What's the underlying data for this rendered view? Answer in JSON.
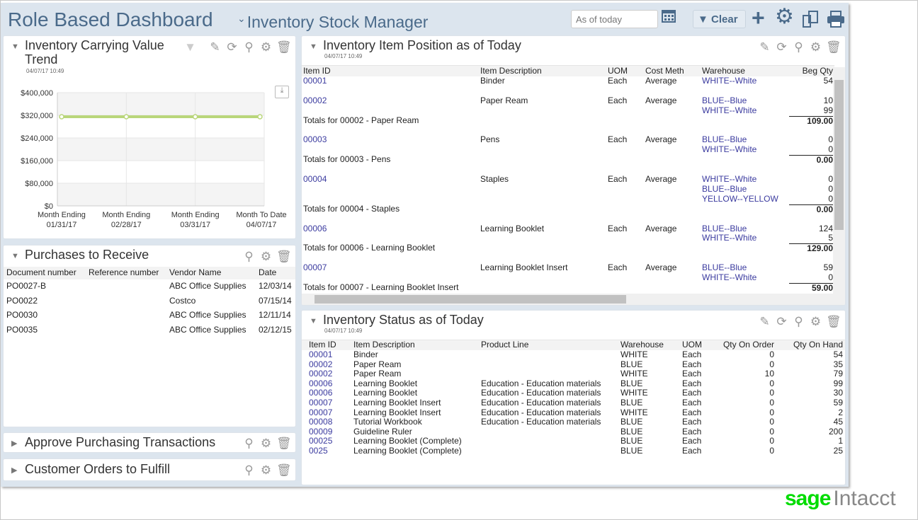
{
  "header": {
    "title": "Role Based Dashboard",
    "dashboard_name": "Inventory Stock Manager",
    "as_of_placeholder": "As of today",
    "clear_label": "Clear"
  },
  "icons": {
    "panel": [
      "pencil-icon",
      "refresh-icon",
      "search-icon",
      "gear-icon",
      "trash-icon"
    ],
    "toolbar": [
      "calendar-icon",
      "filter-icon",
      "plus-icon",
      "gear-icon",
      "copy-icon",
      "print-icon"
    ]
  },
  "colors": {
    "accent": "#4a6a8a",
    "link": "#3b3b9f",
    "series": "#b9d67a",
    "brand": "#00dc00"
  },
  "carrying": {
    "title": "Inventory Carrying Value Trend",
    "timestamp": "04/07/17 10:49"
  },
  "chart_data": {
    "type": "line",
    "title": "",
    "xlabel": "",
    "ylabel": "",
    "ylim": [
      0,
      400000
    ],
    "grid": true,
    "y_ticks": [
      "$0",
      "$80,000",
      "$160,000",
      "$240,000",
      "$320,000",
      "$400,000"
    ],
    "categories": [
      [
        "Month Ending",
        "01/31/17"
      ],
      [
        "Month Ending",
        "02/28/17"
      ],
      [
        "Month Ending",
        "03/31/17"
      ],
      [
        "Month To Date",
        "04/07/17"
      ]
    ],
    "values": [
      315000,
      315000,
      315000,
      315000
    ]
  },
  "purchases": {
    "title": "Purchases to Receive",
    "columns": [
      "Document number",
      "Reference number",
      "Vendor Name",
      "Date"
    ],
    "rows": [
      [
        "PO0027-B",
        "",
        "ABC Office Supplies",
        "12/03/14"
      ],
      [
        "PO0022",
        "",
        "Costco",
        "07/15/14"
      ],
      [
        "PO0030",
        "",
        "ABC Office Supplies",
        "12/11/14"
      ],
      [
        "PO0035",
        "",
        "ABC Office Supplies",
        "02/12/15"
      ]
    ]
  },
  "approve": {
    "title": "Approve Purchasing Transactions"
  },
  "customer": {
    "title": "Customer Orders to Fulfill"
  },
  "position": {
    "title": "Inventory Item Position as of Today",
    "timestamp": "04/07/17 10:49",
    "columns": [
      "Item ID",
      "Item Description",
      "UOM",
      "Cost Meth",
      "Warehouse",
      "Beg Qty"
    ],
    "groups": [
      {
        "id": "00001",
        "desc": "Binder",
        "uom": "Each",
        "cost": "Average",
        "wh": [
          [
            "WHITE--White",
            "54"
          ]
        ]
      },
      {
        "id": "00002",
        "desc": "Paper Ream",
        "uom": "Each",
        "cost": "Average",
        "wh": [
          [
            "BLUE--Blue",
            "10"
          ],
          [
            "WHITE--White",
            "99"
          ]
        ],
        "total_label": "Totals for 00002 - Paper Ream",
        "total": "109.00"
      },
      {
        "id": "00003",
        "desc": "Pens",
        "uom": "Each",
        "cost": "Average",
        "wh": [
          [
            "BLUE--Blue",
            "0"
          ],
          [
            "WHITE--White",
            "0"
          ]
        ],
        "total_label": "Totals for 00003 - Pens",
        "total": "0.00"
      },
      {
        "id": "00004",
        "desc": "Staples",
        "uom": "Each",
        "cost": "Average",
        "wh": [
          [
            "WHITE--White",
            "0"
          ],
          [
            "BLUE--Blue",
            "0"
          ],
          [
            "YELLOW--YELLOW",
            "0"
          ]
        ],
        "total_label": "Totals for 00004 - Staples",
        "total": "0.00"
      },
      {
        "id": "00006",
        "desc": "Learning Booklet",
        "uom": "Each",
        "cost": "Average",
        "wh": [
          [
            "BLUE--Blue",
            "124"
          ],
          [
            "WHITE--White",
            "5"
          ]
        ],
        "total_label": "Totals for 00006 - Learning Booklet",
        "total": "129.00"
      },
      {
        "id": "00007",
        "desc": "Learning Booklet Insert",
        "uom": "Each",
        "cost": "Average",
        "wh": [
          [
            "BLUE--Blue",
            "59"
          ],
          [
            "WHITE--White",
            "0"
          ]
        ],
        "total_label": "Totals for 00007 - Learning Booklet Insert",
        "total": "59.00"
      }
    ]
  },
  "status": {
    "title": "Inventory Status as of Today",
    "timestamp": "04/07/17 10:49",
    "columns": [
      "Item ID",
      "Item Description",
      "Product Line",
      "Warehouse",
      "UOM",
      "Qty On Order",
      "Qty On Hand"
    ],
    "rows": [
      [
        "00001",
        "Binder",
        "",
        "WHITE",
        "Each",
        "0",
        "54"
      ],
      [
        "00002",
        "Paper Ream",
        "",
        "BLUE",
        "Each",
        "0",
        "35"
      ],
      [
        "00002",
        "Paper Ream",
        "",
        "WHITE",
        "Each",
        "10",
        "79"
      ],
      [
        "00006",
        "Learning Booklet",
        "Education - Education materials",
        "BLUE",
        "Each",
        "0",
        "99"
      ],
      [
        "00006",
        "Learning Booklet",
        "Education - Education materials",
        "WHITE",
        "Each",
        "0",
        "30"
      ],
      [
        "00007",
        "Learning Booklet Insert",
        "Education - Education materials",
        "BLUE",
        "Each",
        "0",
        "59"
      ],
      [
        "00007",
        "Learning Booklet Insert",
        "Education - Education materials",
        "WHITE",
        "Each",
        "0",
        "2"
      ],
      [
        "00008",
        "Tutorial Workbook",
        "Education - Education materials",
        "BLUE",
        "Each",
        "0",
        "45"
      ],
      [
        "00009",
        "Guideline Ruler",
        "",
        "BLUE",
        "Each",
        "0",
        "200"
      ],
      [
        "00025",
        "Learning Booklet (Complete)",
        "",
        "BLUE",
        "Each",
        "0",
        "1"
      ],
      [
        "0025",
        "Learning Booklet (Complete)",
        "",
        "BLUE",
        "Each",
        "0",
        "25"
      ]
    ]
  },
  "footer": {
    "logo_sage": "sage",
    "logo_intacct": "Intacct"
  }
}
